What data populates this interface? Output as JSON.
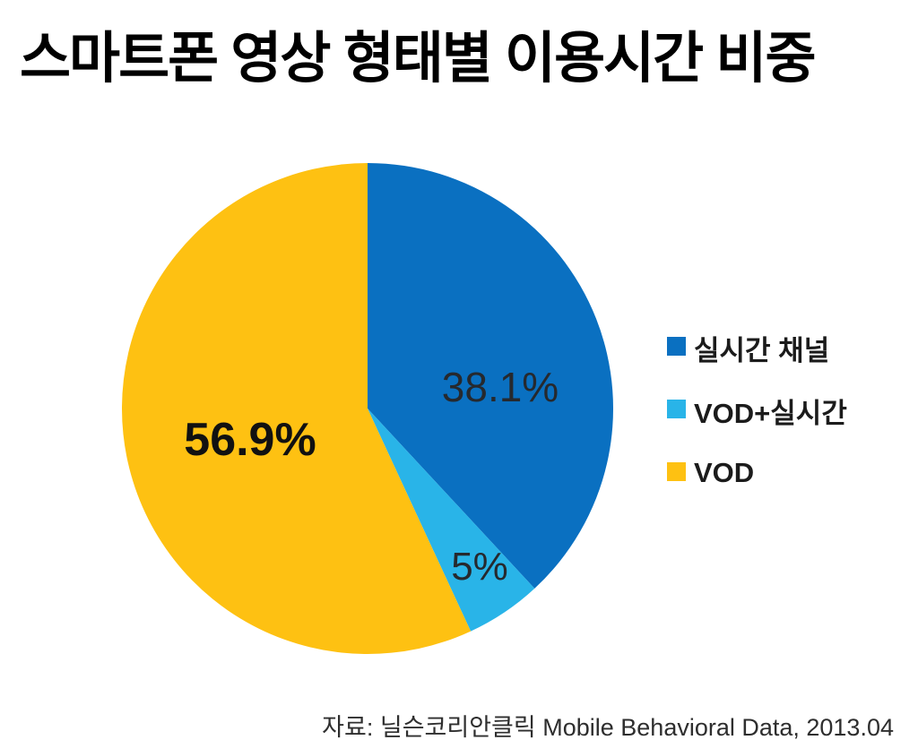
{
  "title": "스마트폰 영상 형태별 이용시간 비중",
  "source": "자료: 닐슨코리안클릭 Mobile Behavioral Data, 2013.04",
  "colors": {
    "background": "#FFFFFF",
    "title_text": "#000000",
    "label_text": "#26292E",
    "source_text": "#2E2E2E",
    "slice_blue": "#0A70C1",
    "slice_light_blue": "#29B4E8",
    "slice_yellow": "#FEC112"
  },
  "chart_data": {
    "type": "pie",
    "title": "스마트폰 영상 형태별 이용시간 비중",
    "categories": [
      "실시간 채널",
      "VOD+실시간",
      "VOD"
    ],
    "values": [
      38.1,
      5,
      56.9
    ],
    "unit": "%",
    "slice_labels": [
      "38.1%",
      "5%",
      "56.9%"
    ],
    "slice_colors": [
      "#0A70C1",
      "#29B4E8",
      "#FEC112"
    ],
    "start_angle_deg": 0,
    "direction": "clockwise",
    "legend_position": "right",
    "legend": [
      {
        "label": "실시간 채널",
        "color": "#0A70C1"
      },
      {
        "label": "VOD+실시간",
        "color": "#29B4E8"
      },
      {
        "label": "VOD",
        "color": "#FEC112"
      }
    ]
  }
}
